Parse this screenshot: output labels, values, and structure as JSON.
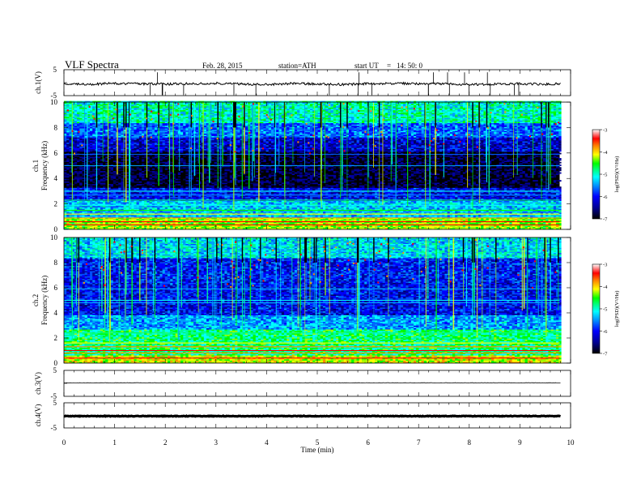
{
  "header": {
    "title": "VLF  Spectra",
    "date": "Feb. 28, 2015",
    "station": "station=ATH",
    "start_label": "start  UT",
    "sep": "=",
    "start_time": "14: 50: 0"
  },
  "chart_data": [
    {
      "type": "line",
      "id": "ch1_waveform",
      "ylabel": "ch.1(V)",
      "ylim": [
        -5,
        5
      ],
      "yticks": [
        "5",
        "-5"
      ],
      "x": [
        0,
        0.5,
        1,
        1.5,
        2,
        2.5,
        3,
        3.5,
        4,
        4.5,
        5,
        5.5,
        6,
        6.5,
        7,
        7.5,
        8,
        8.5,
        9,
        9.5,
        9.8
      ],
      "values": [
        -0.5,
        -0.6,
        -0.3,
        -0.4,
        -0.6,
        -0.4,
        -0.2,
        -0.5,
        -0.7,
        -0.3,
        -0.5,
        -0.7,
        -0.4,
        -0.3,
        -0.4,
        -0.5,
        -0.7,
        -0.5,
        -0.4,
        -0.6,
        -0.5
      ],
      "color": "#000000"
    },
    {
      "type": "heatmap",
      "id": "ch1_spectrogram",
      "ylabel": "ch.1",
      "ylabel2": "Frequency (kHz)",
      "ylim": [
        0,
        10
      ],
      "yticks": [
        "0",
        "2",
        "4",
        "6",
        "8",
        "10"
      ],
      "xlim": [
        0,
        9.8
      ]
    },
    {
      "type": "heatmap",
      "id": "ch2_spectrogram",
      "ylabel": "ch.2",
      "ylabel2": "Frequency (kHz)",
      "ylim": [
        0,
        10
      ],
      "yticks": [
        "0",
        "2",
        "4",
        "6",
        "8",
        "10"
      ],
      "xlim": [
        0,
        9.8
      ]
    },
    {
      "type": "line",
      "id": "ch3_waveform",
      "ylabel": "ch.3(V)",
      "ylim": [
        -5,
        5
      ],
      "yticks": [
        "5",
        "-5"
      ],
      "x": [
        0,
        9.8
      ],
      "values": [
        0.2,
        0.2
      ],
      "color": "#000000"
    },
    {
      "type": "line",
      "id": "ch4_waveform",
      "ylabel": "ch.4(V)",
      "ylim": [
        -5,
        5
      ],
      "yticks": [
        "5",
        "-5"
      ],
      "x": [
        0,
        9.8
      ],
      "values": [
        -0.3,
        -0.3
      ],
      "color": "#000000"
    }
  ],
  "xaxis": {
    "label": "Time  (min)",
    "xlim": [
      0,
      10
    ],
    "ticks": [
      "0",
      "1",
      "2",
      "3",
      "4",
      "5",
      "6",
      "7",
      "8",
      "9",
      "10"
    ]
  },
  "colorbars": [
    {
      "label": "log(PSD)(V²/Hz)",
      "range": [
        -7,
        -3
      ],
      "ticks": [
        "-3",
        "-4",
        "-5",
        "-6",
        "-7"
      ]
    },
    {
      "label": "log(PSD)(V²/Hz)",
      "range": [
        -7,
        -3
      ],
      "ticks": [
        "-3",
        "-4",
        "-5",
        "-6",
        "-7"
      ]
    }
  ],
  "colormap": [
    "#000000",
    "#000080",
    "#0000ff",
    "#0080ff",
    "#00ffff",
    "#00ff80",
    "#00ff00",
    "#80ff00",
    "#ffff00",
    "#ff8000",
    "#ff0000",
    "#ffffff"
  ]
}
